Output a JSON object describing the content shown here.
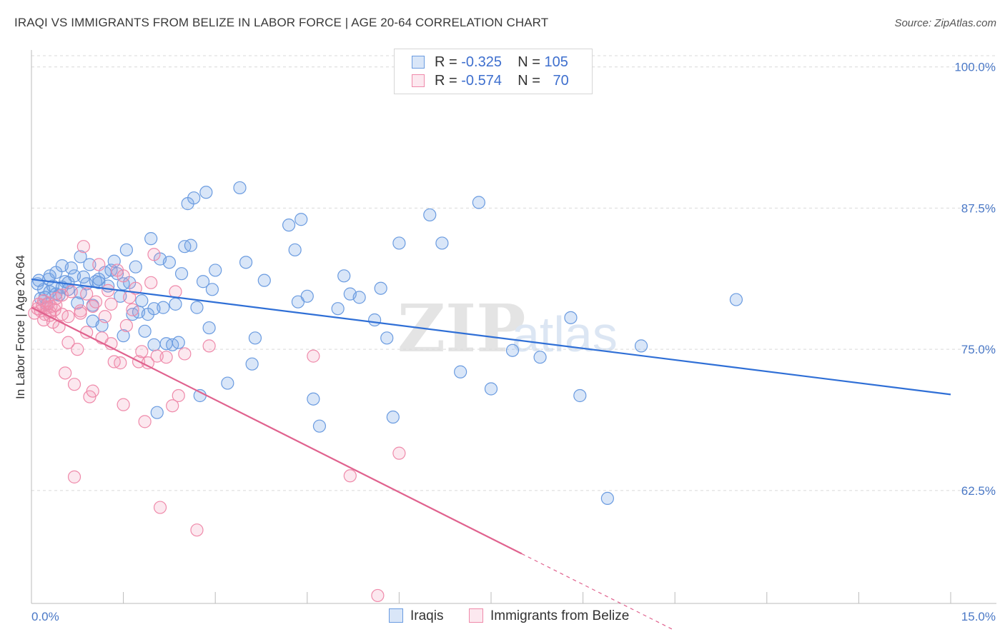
{
  "title": "IRAQI VS IMMIGRANTS FROM BELIZE IN LABOR FORCE | AGE 20-64 CORRELATION CHART",
  "source": "Source: ZipAtlas.com",
  "watermark": {
    "zip": "ZIP",
    "atlas": "atlas"
  },
  "legend": {
    "r_label": "R =",
    "n_label": "N =",
    "rows": [
      {
        "r": "-0.325",
        "n": "105",
        "color": "#6a9be0"
      },
      {
        "r": "-0.574",
        "n": "70",
        "color": "#ef8aaa"
      }
    ]
  },
  "bottom_legend": [
    "Iraqis",
    "Immigrants from Belize"
  ],
  "colors": {
    "iraqis_fill": "rgba(120,165,230,0.28)",
    "iraqis_stroke": "#6a9be0",
    "iraqis_line": "#2f6fd6",
    "belize_fill": "rgba(240,150,180,0.22)",
    "belize_stroke": "#ef8aaa",
    "belize_line": "#e0628e",
    "tick_text": "#4a78c6",
    "grid": "#d9d9d9"
  },
  "chart_data": {
    "type": "scatter",
    "title": "IRAQI VS IMMIGRANTS FROM BELIZE IN LABOR FORCE | AGE 20-64 CORRELATION CHART",
    "xlabel": "",
    "ylabel": "In Labor Force | Age 20-64",
    "xlim": [
      0,
      15
    ],
    "ylim": [
      52.5,
      101.5
    ],
    "x_tick_labels": [
      {
        "v": 0,
        "label": "0.0%"
      },
      {
        "v": 15,
        "label": "15.0%"
      }
    ],
    "x_minor_ticks": [
      1.5,
      3.0,
      4.5,
      6.0,
      7.5,
      9.0,
      10.5,
      12.0,
      13.5,
      15.0
    ],
    "y_ticks": [
      {
        "v": 100.0,
        "label": "100.0%"
      },
      {
        "v": 87.5,
        "label": "87.5%"
      },
      {
        "v": 75.0,
        "label": "75.0%"
      },
      {
        "v": 62.5,
        "label": "62.5%"
      }
    ],
    "series": [
      {
        "name": "Iraqis",
        "trend": {
          "x": [
            0,
            15
          ],
          "y": [
            81.2,
            71.0
          ]
        },
        "points": [
          [
            0.1,
            80.8
          ],
          [
            0.15,
            79.5
          ],
          [
            0.2,
            80.3
          ],
          [
            0.25,
            79.0
          ],
          [
            0.3,
            80.1
          ],
          [
            0.12,
            81.1
          ],
          [
            0.22,
            79.6
          ],
          [
            0.28,
            81.2
          ],
          [
            0.35,
            80.6
          ],
          [
            0.4,
            81.8
          ],
          [
            0.45,
            79.8
          ],
          [
            0.5,
            82.4
          ],
          [
            0.55,
            81.0
          ],
          [
            0.6,
            80.3
          ],
          [
            0.65,
            82.2
          ],
          [
            0.7,
            81.5
          ],
          [
            0.75,
            79.1
          ],
          [
            0.8,
            83.2
          ],
          [
            0.85,
            81.4
          ],
          [
            0.9,
            80.8
          ],
          [
            0.95,
            82.5
          ],
          [
            1.0,
            77.5
          ],
          [
            1.05,
            81.0
          ],
          [
            1.1,
            80.9
          ],
          [
            1.15,
            77.1
          ],
          [
            1.2,
            81.8
          ],
          [
            1.25,
            80.6
          ],
          [
            1.3,
            82.0
          ],
          [
            1.35,
            82.8
          ],
          [
            1.4,
            81.7
          ],
          [
            1.45,
            79.7
          ],
          [
            1.5,
            76.2
          ],
          [
            1.55,
            83.8
          ],
          [
            1.6,
            80.9
          ],
          [
            1.65,
            78.1
          ],
          [
            1.7,
            82.3
          ],
          [
            1.75,
            78.3
          ],
          [
            1.8,
            79.3
          ],
          [
            1.85,
            76.6
          ],
          [
            1.9,
            78.1
          ],
          [
            1.95,
            84.8
          ],
          [
            2.0,
            75.4
          ],
          [
            2.05,
            69.4
          ],
          [
            2.1,
            83.0
          ],
          [
            2.15,
            78.7
          ],
          [
            2.2,
            75.5
          ],
          [
            2.25,
            82.7
          ],
          [
            2.3,
            75.4
          ],
          [
            2.35,
            79.0
          ],
          [
            2.4,
            75.6
          ],
          [
            2.45,
            81.7
          ],
          [
            2.5,
            84.1
          ],
          [
            2.55,
            87.9
          ],
          [
            2.6,
            84.2
          ],
          [
            2.65,
            88.4
          ],
          [
            2.7,
            78.7
          ],
          [
            2.75,
            70.9
          ],
          [
            2.8,
            81.0
          ],
          [
            2.85,
            88.9
          ],
          [
            2.9,
            76.9
          ],
          [
            2.95,
            80.3
          ],
          [
            3.0,
            82.0
          ],
          [
            3.2,
            72.0
          ],
          [
            3.4,
            89.3
          ],
          [
            3.5,
            82.7
          ],
          [
            3.6,
            73.7
          ],
          [
            3.65,
            76.0
          ],
          [
            3.8,
            81.1
          ],
          [
            4.2,
            86.0
          ],
          [
            4.3,
            83.8
          ],
          [
            4.35,
            79.2
          ],
          [
            4.4,
            86.5
          ],
          [
            4.5,
            79.7
          ],
          [
            4.6,
            70.6
          ],
          [
            4.7,
            68.2
          ],
          [
            5.0,
            78.6
          ],
          [
            5.1,
            81.5
          ],
          [
            5.2,
            79.9
          ],
          [
            5.35,
            79.6
          ],
          [
            5.6,
            77.6
          ],
          [
            5.7,
            80.4
          ],
          [
            5.8,
            76.0
          ],
          [
            5.9,
            69.0
          ],
          [
            6.0,
            84.4
          ],
          [
            6.5,
            86.9
          ],
          [
            6.7,
            84.4
          ],
          [
            7.0,
            73.0
          ],
          [
            7.3,
            88.0
          ],
          [
            7.5,
            71.5
          ],
          [
            7.85,
            74.9
          ],
          [
            8.3,
            74.3
          ],
          [
            8.8,
            77.8
          ],
          [
            8.95,
            70.9
          ],
          [
            9.4,
            61.8
          ],
          [
            9.95,
            75.3
          ],
          [
            11.5,
            79.4
          ],
          [
            0.6,
            80.9
          ],
          [
            1.1,
            81.2
          ],
          [
            0.4,
            79.9
          ],
          [
            0.3,
            81.5
          ],
          [
            0.5,
            80.5
          ],
          [
            1.0,
            78.9
          ],
          [
            2.0,
            78.6
          ],
          [
            0.8,
            80.0
          ],
          [
            1.5,
            80.8
          ]
        ]
      },
      {
        "name": "Immigrants from Belize",
        "trend": {
          "x": [
            0,
            8.0
          ],
          "y": [
            78.7,
            56.9
          ]
        },
        "trend_dashed": {
          "x": [
            8.0,
            10.5
          ],
          "y": [
            56.9,
            50.1
          ]
        },
        "points": [
          [
            0.05,
            78.2
          ],
          [
            0.1,
            78.6
          ],
          [
            0.12,
            79.0
          ],
          [
            0.15,
            78.4
          ],
          [
            0.18,
            78.9
          ],
          [
            0.2,
            79.3
          ],
          [
            0.22,
            78.1
          ],
          [
            0.25,
            78.7
          ],
          [
            0.28,
            79.1
          ],
          [
            0.3,
            78.3
          ],
          [
            0.32,
            78.8
          ],
          [
            0.35,
            77.4
          ],
          [
            0.38,
            78.5
          ],
          [
            0.4,
            78.9
          ],
          [
            0.45,
            77.0
          ],
          [
            0.5,
            78.1
          ],
          [
            0.55,
            72.9
          ],
          [
            0.6,
            75.6
          ],
          [
            0.65,
            80.1
          ],
          [
            0.7,
            71.9
          ],
          [
            0.75,
            75.0
          ],
          [
            0.8,
            78.4
          ],
          [
            0.85,
            84.1
          ],
          [
            0.9,
            79.9
          ],
          [
            0.95,
            70.8
          ],
          [
            1.0,
            71.3
          ],
          [
            1.05,
            79.2
          ],
          [
            1.1,
            82.5
          ],
          [
            1.15,
            76.0
          ],
          [
            1.2,
            77.9
          ],
          [
            1.25,
            80.2
          ],
          [
            1.3,
            75.5
          ],
          [
            1.35,
            73.9
          ],
          [
            1.4,
            82.0
          ],
          [
            1.45,
            73.8
          ],
          [
            1.5,
            70.1
          ],
          [
            1.55,
            77.1
          ],
          [
            1.6,
            79.6
          ],
          [
            1.65,
            78.5
          ],
          [
            1.7,
            80.4
          ],
          [
            1.75,
            73.9
          ],
          [
            1.8,
            74.8
          ],
          [
            1.85,
            68.6
          ],
          [
            1.9,
            73.8
          ],
          [
            1.95,
            80.9
          ],
          [
            2.0,
            83.4
          ],
          [
            2.05,
            74.4
          ],
          [
            2.1,
            61.0
          ],
          [
            2.2,
            74.3
          ],
          [
            2.3,
            70.0
          ],
          [
            2.35,
            80.1
          ],
          [
            2.4,
            70.9
          ],
          [
            2.5,
            74.6
          ],
          [
            2.7,
            59.0
          ],
          [
            2.9,
            75.3
          ],
          [
            0.7,
            63.7
          ],
          [
            4.6,
            74.4
          ],
          [
            5.2,
            63.8
          ],
          [
            5.65,
            53.2
          ],
          [
            6.0,
            65.8
          ],
          [
            0.3,
            78.0
          ],
          [
            0.6,
            77.9
          ],
          [
            1.0,
            78.8
          ],
          [
            0.4,
            79.5
          ],
          [
            0.2,
            77.6
          ],
          [
            0.8,
            78.2
          ],
          [
            1.5,
            81.5
          ],
          [
            0.9,
            76.5
          ],
          [
            0.5,
            79.8
          ],
          [
            1.3,
            79.0
          ]
        ]
      }
    ]
  }
}
